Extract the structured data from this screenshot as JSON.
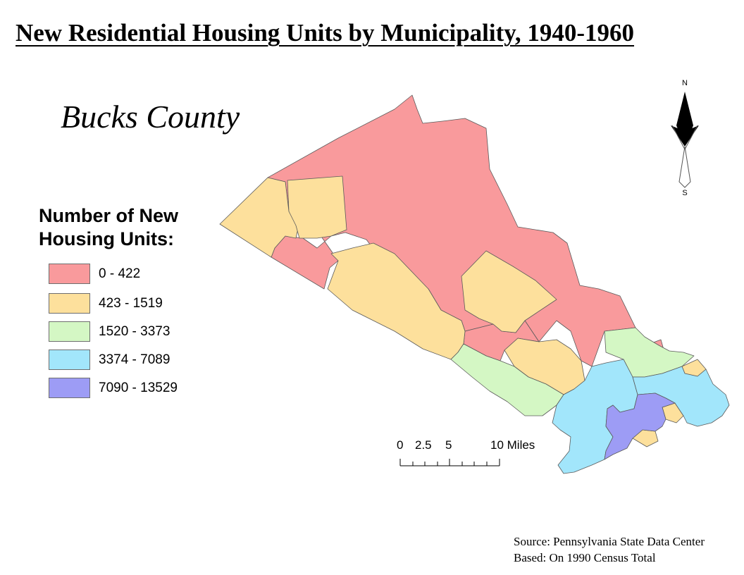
{
  "title": "New Residential Housing Units by Municipality, 1940-1960",
  "county_label": "Bucks County",
  "legend": {
    "title": "Number of New Housing Units:",
    "classes": [
      {
        "label": "0 - 422",
        "color": "#f99a9c"
      },
      {
        "label": "423 - 1519",
        "color": "#fde09c"
      },
      {
        "label": "1520 - 3373",
        "color": "#d4f7c4"
      },
      {
        "label": "3374 - 7089",
        "color": "#a2e6fb"
      },
      {
        "label": "7090 - 13529",
        "color": "#9d9cf5"
      }
    ]
  },
  "north_arrow": {
    "north": "N",
    "south": "S",
    "icon": "north-arrow-icon"
  },
  "scale_bar": {
    "ticks": [
      "0",
      "2.5",
      "5",
      "10 Miles"
    ]
  },
  "source": {
    "line1": "Source: Pennsylvania State Data Center",
    "line2": "Based: On 1990 Census Total"
  }
}
